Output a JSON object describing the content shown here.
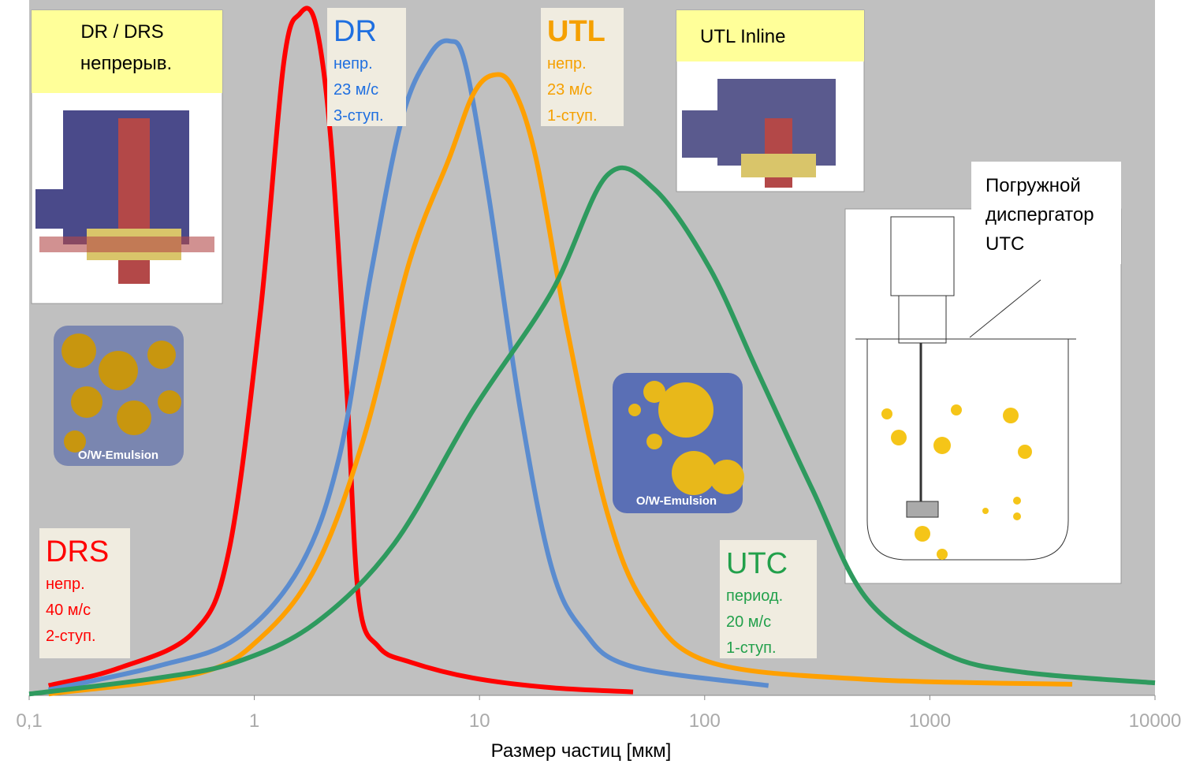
{
  "chart_data": {
    "type": "line",
    "log_x": true,
    "xlabel": "Размер частиц [мкм]",
    "xlim": [
      0.1,
      10000
    ],
    "ylim": [
      0,
      100
    ],
    "xticks": [
      {
        "value": 0.1,
        "label": "0,1"
      },
      1,
      10,
      100,
      1000,
      10000
    ],
    "series": [
      {
        "name": "DRS",
        "color": "#ff0000",
        "notes": [
          "непр.",
          "40 м/с",
          "2-ступ."
        ],
        "x": [
          0.122,
          0.249,
          0.535,
          0.769,
          1.06,
          1.35,
          1.59,
          1.87,
          2.19,
          2.58,
          2.91,
          3.56,
          4.91,
          9.36,
          20.9,
          48.1
        ],
        "values": [
          1.4,
          3.9,
          9.0,
          20.6,
          54.6,
          90.9,
          98.0,
          96.6,
          79.6,
          43.3,
          13.8,
          7.0,
          4.8,
          2.5,
          1.1,
          0.5
        ]
      },
      {
        "name": "DR",
        "color": "#5b8ccf",
        "notes": [
          "непр.",
          "23 м/с",
          "3-ступ."
        ],
        "x": [
          0.122,
          0.372,
          0.834,
          1.59,
          2.38,
          3.28,
          4.53,
          6.01,
          7.35,
          8.63,
          11.0,
          15.2,
          20.9,
          28.9,
          47.0,
          192
        ],
        "values": [
          0.8,
          4.2,
          8.2,
          18.4,
          34.2,
          60.3,
          83.0,
          92.1,
          94.1,
          90.9,
          71.7,
          41.0,
          18.4,
          9.3,
          4.2,
          1.4
        ]
      },
      {
        "name": "UTL",
        "color": "#ffa000",
        "notes": [
          "непр.",
          "23 м/с",
          "1-ступ."
        ],
        "x": [
          0.122,
          0.557,
          1.06,
          1.87,
          3.03,
          4.91,
          7.35,
          9.36,
          11.5,
          14.0,
          17.8,
          24.6,
          36.9,
          55.2,
          105,
          527,
          4290
        ],
        "values": [
          0.2,
          3.1,
          8.2,
          18.4,
          36.5,
          62.6,
          77.3,
          86.4,
          89.2,
          87.5,
          77.3,
          52.4,
          26.3,
          12.7,
          4.8,
          2.3,
          1.6
        ]
      },
      {
        "name": "UTC",
        "color": "#2e9a5e",
        "notes": [
          "период.",
          "20 м/с",
          "1-ступ."
        ],
        "x": [
          0.1,
          0.372,
          0.834,
          1.87,
          4.18,
          9.36,
          20.9,
          36.9,
          59.8,
          105,
          171,
          300,
          527,
          1180,
          2640,
          10000
        ],
        "values": [
          0.2,
          2.5,
          4.8,
          10.4,
          21.8,
          41.0,
          58.0,
          74.8,
          72.8,
          61.5,
          46.7,
          29.7,
          13.8,
          5.9,
          3.3,
          1.8
        ]
      }
    ],
    "annotations": {
      "dr_drs": [
        "DR / DRS",
        "непрерыв."
      ],
      "utl_inline": "UTL Inline",
      "utc": [
        "Погружной",
        "диспергатор",
        "UTC"
      ],
      "emulsion_1": "O/W-Emulsion",
      "emulsion_2": "O/W-Emulsion"
    }
  }
}
